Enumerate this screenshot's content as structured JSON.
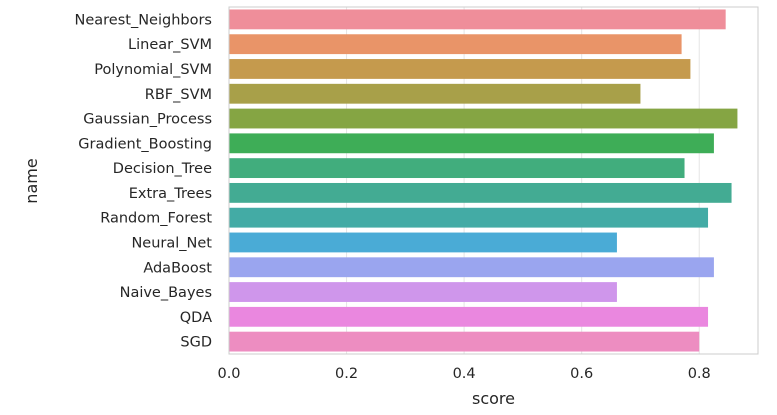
{
  "chart_data": {
    "type": "bar",
    "orientation": "horizontal",
    "xlabel": "score",
    "ylabel": "name",
    "xlim": [
      0.0,
      0.9
    ],
    "x_ticks": [
      "0.0",
      "0.2",
      "0.4",
      "0.6",
      "0.8"
    ],
    "x_tick_values": [
      0.0,
      0.2,
      0.4,
      0.6,
      0.8
    ],
    "grid": true,
    "categories": [
      "Nearest_Neighbors",
      "Linear_SVM",
      "Polynomial_SVM",
      "RBF_SVM",
      "Gaussian_Process",
      "Gradient_Boosting",
      "Decision_Tree",
      "Extra_Trees",
      "Random_Forest",
      "Neural_Net",
      "AdaBoost",
      "Naive_Bayes",
      "QDA",
      "SGD"
    ],
    "values": [
      0.845,
      0.77,
      0.785,
      0.7,
      0.865,
      0.825,
      0.775,
      0.855,
      0.815,
      0.66,
      0.825,
      0.66,
      0.815,
      0.8
    ],
    "colors": [
      "#ef8e9a",
      "#e99468",
      "#c59a4d",
      "#a8a049",
      "#85a543",
      "#3ead57",
      "#41ad7d",
      "#43ab93",
      "#43aba5",
      "#4aabd6",
      "#9aa5ef",
      "#cf96eb",
      "#ea87df",
      "#ed8dc1"
    ]
  }
}
